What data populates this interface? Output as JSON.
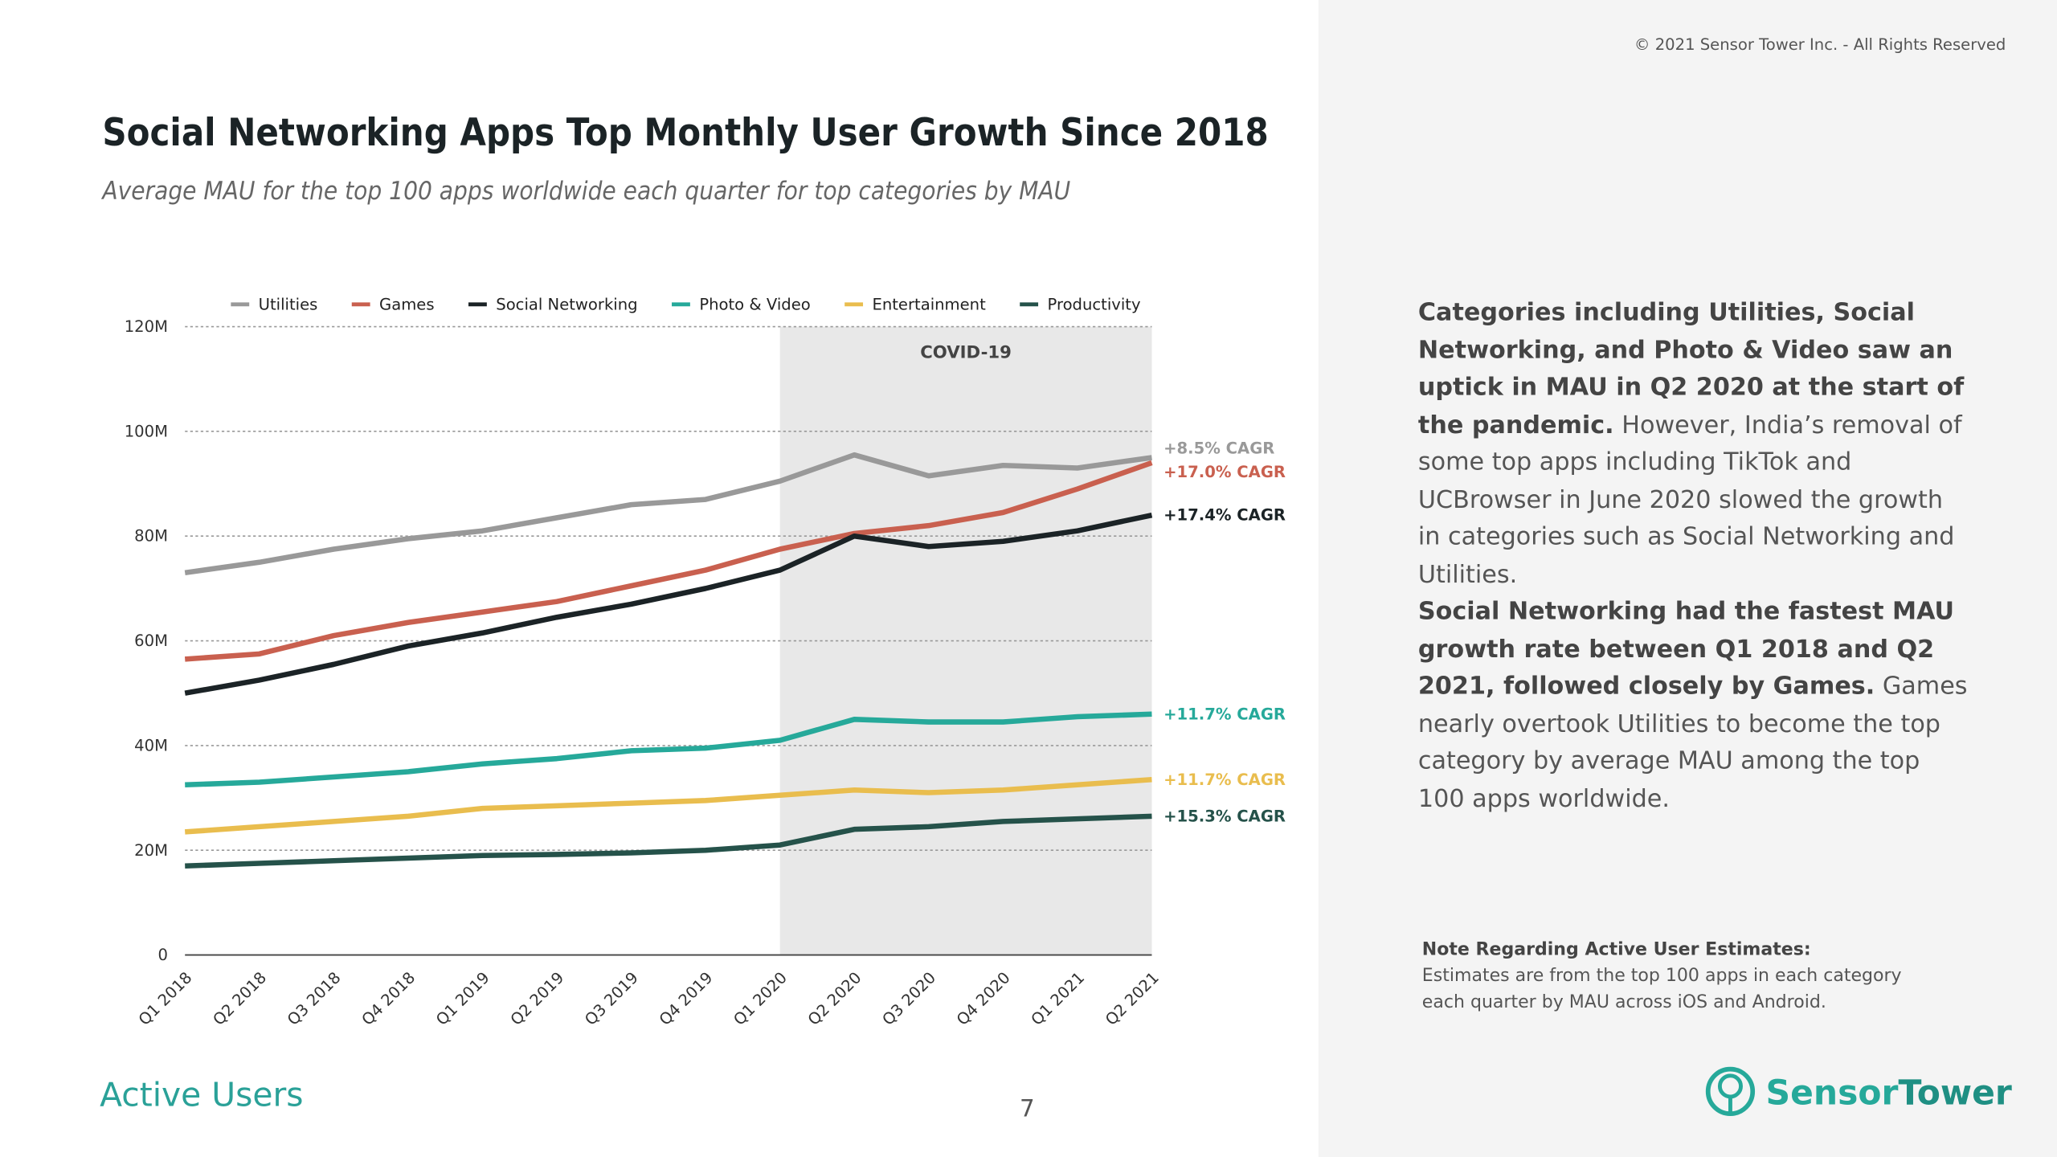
{
  "page": {
    "copyright": "© 2021 Sensor Tower Inc. - All Rights Reserved",
    "paragraphs": [
      {
        "bold": "Categories including Utilities, Social Networking, and Photo & Video saw an uptick in MAU in Q2 2020 at the start of the pandemic.",
        "text": "However, India’s removal of some top apps including TikTok and UCBrowser in June 2020 slowed the growth in categories such as Social Networking and Utilities."
      },
      {
        "bold": "Social Networking had the fastest MAU growth rate between Q1 2018 and Q2 2021, followed closely by Games.",
        "text": "Games nearly overtook Utilities to become the top category by average MAU among the top 100 apps worldwide."
      }
    ],
    "note_title": "Note Regarding Active User Estimates:",
    "note_text": "Estimates are from the top 100 apps in each category each quarter by MAU across iOS and Android.",
    "footer": "Active Users",
    "page_number": "7",
    "logo_part_1": "Sensor",
    "logo_part_2": "Tower"
  },
  "chart_data": {
    "type": "line",
    "title": "Social Networking Apps Top Monthly User Growth Since 2018",
    "subtitle": "Average MAU for the top 100 apps worldwide each quarter for top categories by MAU",
    "categories": [
      "Q1 2018",
      "Q2 2018",
      "Q3 2018",
      "Q4 2018",
      "Q1 2019",
      "Q2 2019",
      "Q3 2019",
      "Q4 2019",
      "Q1 2020",
      "Q2 2020",
      "Q3 2020",
      "Q4 2020",
      "Q1 2021",
      "Q2 2021"
    ],
    "series": [
      {
        "name": "Utilities",
        "color": "#999999",
        "end_label": "+8.5% CAGR",
        "values": [
          73,
          75,
          77.5,
          79.5,
          81,
          83.5,
          86,
          87,
          90.5,
          95.5,
          91.5,
          93.5,
          93,
          95
        ]
      },
      {
        "name": "Games",
        "color": "#c9604f",
        "end_label": "+17.0% CAGR",
        "values": [
          56.5,
          57.5,
          61,
          63.5,
          65.5,
          67.5,
          70.5,
          73.5,
          77.5,
          80.5,
          82,
          84.5,
          89,
          94
        ]
      },
      {
        "name": "Social Networking",
        "color": "#1b2326",
        "end_label": "+17.4% CAGR",
        "values": [
          50,
          52.5,
          55.5,
          59,
          61.5,
          64.5,
          67,
          70,
          73.5,
          80,
          78,
          79,
          81,
          84
        ]
      },
      {
        "name": "Photo & Video",
        "color": "#26a99a",
        "end_label": "+11.7% CAGR",
        "values": [
          32.5,
          33,
          34,
          35,
          36.5,
          37.5,
          39,
          39.5,
          41,
          45,
          44.5,
          44.5,
          45.5,
          46
        ]
      },
      {
        "name": "Entertainment",
        "color": "#e9bd4e",
        "end_label": "+11.7% CAGR",
        "values": [
          23.5,
          24.5,
          25.5,
          26.5,
          28,
          28.5,
          29,
          29.5,
          30.5,
          31.5,
          31,
          31.5,
          32.5,
          33.5
        ]
      },
      {
        "name": "Productivity",
        "color": "#25524a",
        "end_label": "+15.3% CAGR",
        "values": [
          17,
          17.5,
          18,
          18.5,
          19,
          19.2,
          19.5,
          20,
          21,
          24,
          24.5,
          25.5,
          26,
          26.5
        ]
      }
    ],
    "ylim": [
      0,
      120
    ],
    "yticks": [
      0,
      {
        "value": 20,
        "label": "20M"
      },
      {
        "value": 40,
        "label": "40M"
      },
      {
        "value": 60,
        "label": "60M"
      },
      {
        "value": 80,
        "label": "80M"
      },
      {
        "value": 100,
        "label": "100M"
      },
      {
        "value": 120,
        "label": "120M"
      }
    ],
    "grid": true,
    "legend": "top",
    "shaded_region": {
      "label": "COVID-19",
      "from": "Q1 2020",
      "to": "Q2 2021",
      "color": "#e8e8e8"
    }
  }
}
